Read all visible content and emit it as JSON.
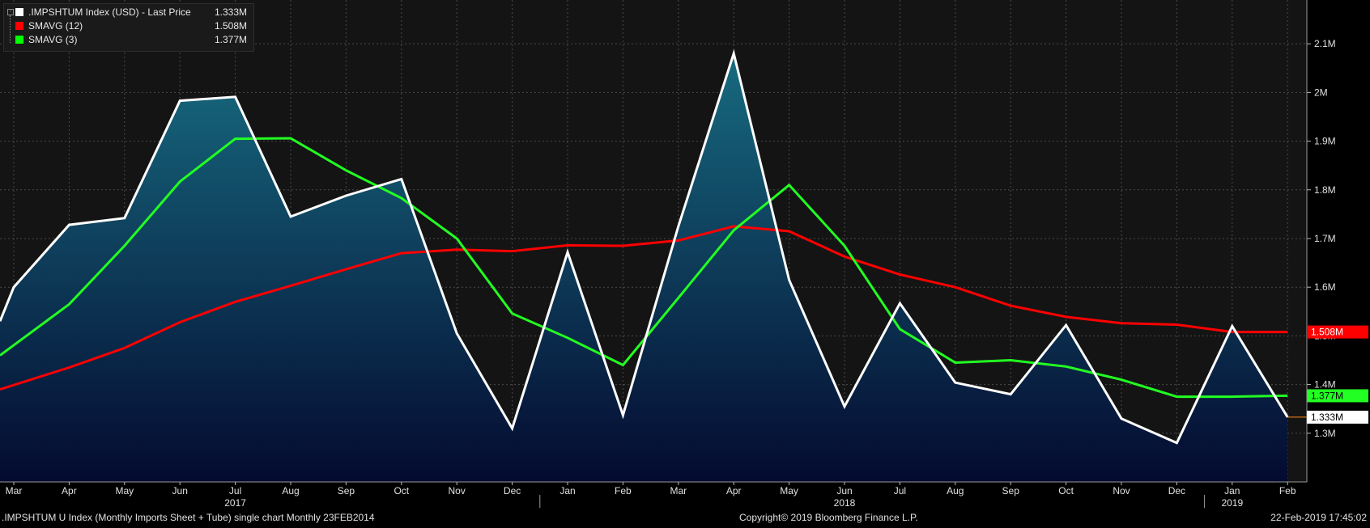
{
  "legend": {
    "items": [
      {
        "label": ".IMPSHTUM Index (USD) - Last Price",
        "value": "1.333M",
        "color": "#ffffff"
      },
      {
        "label": "SMAVG (12)",
        "value": "1.508M",
        "color": "#ff0000"
      },
      {
        "label": "SMAVG (3)",
        "value": "1.377M",
        "color": "#00ff00"
      }
    ]
  },
  "footer": {
    "left": ".IMPSHTUM U Index (Monthly Imports Sheet + Tube) single chart  Monthly 23FEB2014",
    "center": "Copyright© 2019 Bloomberg Finance L.P.",
    "right": "22-Feb-2019 17:45:02"
  },
  "colors": {
    "background": "#000000",
    "plot_background": "#141414",
    "area_top": "#176b80",
    "area_bottom": "#040a30",
    "price_line": "#ffffff",
    "smavg12": "#ff0000",
    "smavg3": "#22ff22",
    "grid": "#4a4a4a"
  },
  "chart_data": {
    "type": "area",
    "x_labels": [
      "Mar",
      "Apr",
      "May",
      "Jun",
      "Jul",
      "Aug",
      "Sep",
      "Oct",
      "Nov",
      "Dec",
      "Jan",
      "Feb",
      "Mar",
      "Apr",
      "May",
      "Jun",
      "Jul",
      "Aug",
      "Sep",
      "Oct",
      "Nov",
      "Dec",
      "Jan",
      "Feb"
    ],
    "year_labels": [
      {
        "label": "2017",
        "month_index": 4
      },
      {
        "label": "2018",
        "month_index": 15
      },
      {
        "label": "2019",
        "month_index": 22
      }
    ],
    "y_ticks": [
      {
        "value": 1.3,
        "label": "1.3M"
      },
      {
        "value": 1.4,
        "label": "1.4M"
      },
      {
        "value": 1.5,
        "label": "1.5M"
      },
      {
        "value": 1.6,
        "label": "1.6M"
      },
      {
        "value": 1.7,
        "label": "1.7M"
      },
      {
        "value": 1.8,
        "label": "1.8M"
      },
      {
        "value": 1.9,
        "label": "1.9M"
      },
      {
        "value": 2.0,
        "label": "2M"
      },
      {
        "value": 2.1,
        "label": "2.1M"
      }
    ],
    "ylim": [
      1.2,
      2.19
    ],
    "grid": true,
    "series": [
      {
        "name": ".IMPSHTUM Index (USD) - Last Price",
        "style": "area-line",
        "edge_values": [
          1.53,
          1.6
        ],
        "values": [
          1.728,
          1.742,
          1.983,
          1.991,
          1.745,
          1.788,
          1.822,
          1.505,
          1.31,
          1.672,
          1.337,
          1.725,
          2.08,
          1.615,
          1.355,
          1.567,
          1.404,
          1.38,
          1.522,
          1.33,
          1.28,
          1.52,
          1.333
        ],
        "value_flag": "1.333M"
      },
      {
        "name": "SMAVG (12)",
        "style": "line",
        "edge_values": [
          1.39,
          1.435
        ],
        "values": [
          1.475,
          1.528,
          1.57,
          1.603,
          1.637,
          1.67,
          1.677,
          1.674,
          1.686,
          1.685,
          1.696,
          1.725,
          1.715,
          1.663,
          1.626,
          1.6,
          1.562,
          1.539,
          1.526,
          1.523,
          1.508,
          1.508
        ],
        "value_flag": "1.508M"
      },
      {
        "name": "SMAVG (3)",
        "style": "line",
        "edge_values": [
          1.46,
          1.565
        ],
        "values": [
          1.685,
          1.817,
          1.905,
          1.906,
          1.84,
          1.783,
          1.7,
          1.546,
          1.496,
          1.44,
          1.578,
          1.717,
          1.81,
          1.685,
          1.514,
          1.445,
          1.45,
          1.437,
          1.41,
          1.375,
          1.375,
          1.377
        ],
        "value_flag": "1.377M"
      }
    ]
  }
}
